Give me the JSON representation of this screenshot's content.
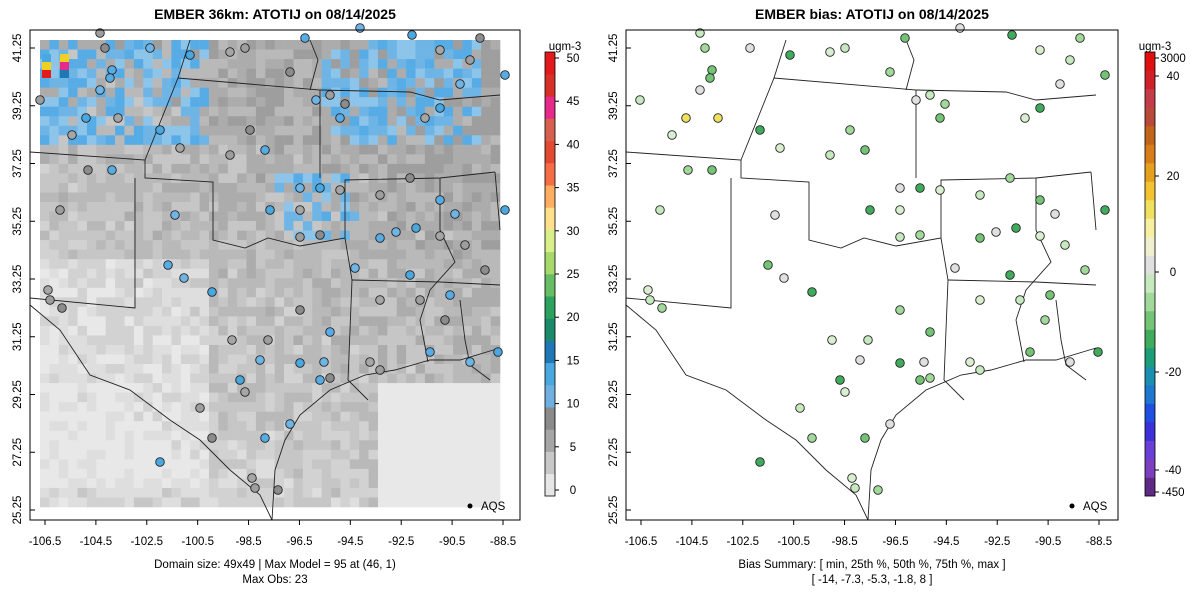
{
  "chart_data": [
    {
      "type": "heatmap",
      "title": "EMBER 36km: ATOTIJ on 08/14/2025",
      "x_ticks": [
        "-106.5",
        "-104.5",
        "-102.5",
        "-100.5",
        "-98.5",
        "-96.5",
        "-94.5",
        "-92.5",
        "-90.5",
        "-88.5"
      ],
      "y_ticks": [
        "25.25",
        "27.25",
        "29.25",
        "31.25",
        "33.25",
        "35.25",
        "37.25",
        "39.25",
        "41.25"
      ],
      "colorbar": {
        "unit": "ugm-3",
        "ticks": [
          "0",
          "5",
          "10",
          "15",
          "20",
          "25",
          "30",
          "35",
          "40",
          "45",
          "50"
        ],
        "min": 0,
        "max": 50,
        "colors": [
          "#e6e6e6",
          "#c8c8c8",
          "#a6a6a6",
          "#8a8a8a",
          "#6fb0e0",
          "#4aa8e0",
          "#1f78b4",
          "#1a8a6a",
          "#2ca25f",
          "#66bd63",
          "#a6d96a",
          "#d9ef8b",
          "#fee08b",
          "#fdae61",
          "#f46d43",
          "#e34a33",
          "#d6604d",
          "#e7298a",
          "#d73027",
          "#e31a1c"
        ]
      },
      "legend": {
        "label": "AQS",
        "placement": "bottom-right"
      },
      "footer_lines": [
        "Domain size: 49x49 | Max Model = 95 at (46, 1)",
        "Max Obs: 23"
      ]
    },
    {
      "type": "heatmap",
      "title": "EMBER bias: ATOTIJ on 08/14/2025",
      "x_ticks": [
        "-106.5",
        "-104.5",
        "-102.5",
        "-100.5",
        "-98.5",
        "-96.5",
        "-94.5",
        "-92.5",
        "-90.5",
        "-88.5"
      ],
      "y_ticks": [
        "25.25",
        "27.25",
        "29.25",
        "31.25",
        "33.25",
        "35.25",
        "37.25",
        "39.25",
        "41.25"
      ],
      "colorbar": {
        "unit": "ugm-3",
        "ticks": [
          "-450",
          "-40",
          "-20",
          "0",
          "20",
          "40",
          "3000"
        ],
        "colors": [
          "#5e2a84",
          "#7b3fbf",
          "#6a3fd6",
          "#3b2fd9",
          "#1f4fe0",
          "#1f78d0",
          "#1a8fb0",
          "#1b9e77",
          "#41ab5d",
          "#74c476",
          "#a1d99b",
          "#c7e9c0",
          "#e0e0e0",
          "#f0f0d0",
          "#f7f0a0",
          "#f0e060",
          "#f2c230",
          "#e6a020",
          "#d97d1a",
          "#c0651a",
          "#b94a3a",
          "#c43c4a",
          "#d0202a",
          "#e01010"
        ]
      },
      "legend": {
        "label": "AQS",
        "placement": "bottom-right"
      },
      "bias_summary": {
        "label": "Bias Summary: [ min, 25th %, 50th %, 75th %, max ]",
        "values": "[ -14,   -7.3,   -5.3,   -1.8,   8 ]",
        "min": -14,
        "p25": -7.3,
        "p50": -5.3,
        "p75": -1.8,
        "max": 8
      }
    }
  ]
}
